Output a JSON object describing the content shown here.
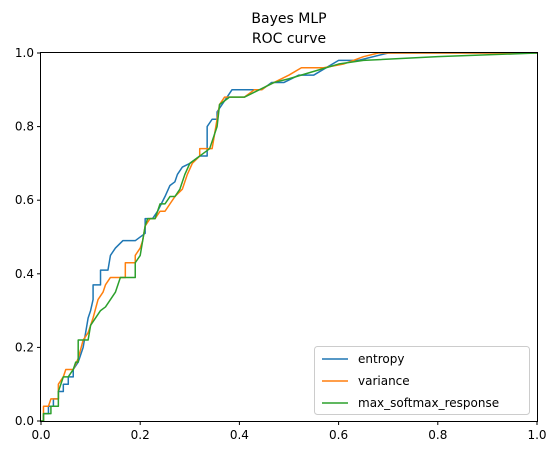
{
  "chart_data": {
    "type": "line",
    "title": [
      "Bayes MLP",
      "ROC curve"
    ],
    "xlabel": "",
    "ylabel": "",
    "xlim": [
      0,
      1
    ],
    "ylim": [
      0,
      1
    ],
    "x_ticks": [
      "0.0",
      "0.2",
      "0.4",
      "0.6",
      "0.8",
      "1.0"
    ],
    "y_ticks": [
      "0.0",
      "0.2",
      "0.4",
      "0.6",
      "0.8",
      "1.0"
    ],
    "grid": false,
    "legend": "bottom-right",
    "series": [
      {
        "name": "entropy",
        "color": "#1f77b4",
        "points": [
          [
            0,
            0
          ],
          [
            0.005,
            0
          ],
          [
            0.005,
            0.02
          ],
          [
            0.015,
            0.02
          ],
          [
            0.015,
            0.04
          ],
          [
            0.025,
            0.04
          ],
          [
            0.025,
            0.06
          ],
          [
            0.035,
            0.06
          ],
          [
            0.035,
            0.08
          ],
          [
            0.045,
            0.08
          ],
          [
            0.045,
            0.1
          ],
          [
            0.055,
            0.1
          ],
          [
            0.055,
            0.12
          ],
          [
            0.065,
            0.12
          ],
          [
            0.065,
            0.14
          ],
          [
            0.075,
            0.16
          ],
          [
            0.085,
            0.2
          ],
          [
            0.09,
            0.24
          ],
          [
            0.095,
            0.28
          ],
          [
            0.1,
            0.3
          ],
          [
            0.105,
            0.33
          ],
          [
            0.105,
            0.37
          ],
          [
            0.12,
            0.37
          ],
          [
            0.12,
            0.41
          ],
          [
            0.135,
            0.41
          ],
          [
            0.14,
            0.45
          ],
          [
            0.15,
            0.47
          ],
          [
            0.165,
            0.49
          ],
          [
            0.19,
            0.49
          ],
          [
            0.21,
            0.51
          ],
          [
            0.21,
            0.55
          ],
          [
            0.225,
            0.55
          ],
          [
            0.235,
            0.57
          ],
          [
            0.25,
            0.61
          ],
          [
            0.26,
            0.64
          ],
          [
            0.27,
            0.65
          ],
          [
            0.275,
            0.67
          ],
          [
            0.285,
            0.69
          ],
          [
            0.3,
            0.7
          ],
          [
            0.31,
            0.71
          ],
          [
            0.32,
            0.72
          ],
          [
            0.335,
            0.72
          ],
          [
            0.335,
            0.8
          ],
          [
            0.345,
            0.82
          ],
          [
            0.355,
            0.82
          ],
          [
            0.355,
            0.84
          ],
          [
            0.365,
            0.86
          ],
          [
            0.375,
            0.88
          ],
          [
            0.385,
            0.9
          ],
          [
            0.42,
            0.9
          ],
          [
            0.445,
            0.9
          ],
          [
            0.465,
            0.92
          ],
          [
            0.49,
            0.92
          ],
          [
            0.52,
            0.94
          ],
          [
            0.55,
            0.94
          ],
          [
            0.6,
            0.98
          ],
          [
            0.64,
            0.98
          ],
          [
            0.7,
            1.0
          ],
          [
            0.73,
            1.0
          ],
          [
            1.0,
            1.0
          ]
        ]
      },
      {
        "name": "variance",
        "color": "#ff7f0e",
        "points": [
          [
            0,
            0
          ],
          [
            0.005,
            0
          ],
          [
            0.005,
            0.04
          ],
          [
            0.015,
            0.04
          ],
          [
            0.02,
            0.06
          ],
          [
            0.035,
            0.06
          ],
          [
            0.035,
            0.1
          ],
          [
            0.045,
            0.12
          ],
          [
            0.05,
            0.14
          ],
          [
            0.065,
            0.14
          ],
          [
            0.075,
            0.17
          ],
          [
            0.085,
            0.22
          ],
          [
            0.095,
            0.24
          ],
          [
            0.105,
            0.28
          ],
          [
            0.115,
            0.33
          ],
          [
            0.125,
            0.35
          ],
          [
            0.13,
            0.37
          ],
          [
            0.14,
            0.39
          ],
          [
            0.17,
            0.39
          ],
          [
            0.17,
            0.43
          ],
          [
            0.19,
            0.43
          ],
          [
            0.19,
            0.45
          ],
          [
            0.2,
            0.47
          ],
          [
            0.205,
            0.49
          ],
          [
            0.21,
            0.53
          ],
          [
            0.22,
            0.55
          ],
          [
            0.23,
            0.55
          ],
          [
            0.24,
            0.57
          ],
          [
            0.25,
            0.57
          ],
          [
            0.26,
            0.59
          ],
          [
            0.27,
            0.61
          ],
          [
            0.285,
            0.63
          ],
          [
            0.295,
            0.67
          ],
          [
            0.305,
            0.7
          ],
          [
            0.32,
            0.72
          ],
          [
            0.32,
            0.74
          ],
          [
            0.345,
            0.74
          ],
          [
            0.35,
            0.78
          ],
          [
            0.36,
            0.86
          ],
          [
            0.37,
            0.88
          ],
          [
            0.41,
            0.88
          ],
          [
            0.43,
            0.9
          ],
          [
            0.445,
            0.9
          ],
          [
            0.455,
            0.91
          ],
          [
            0.47,
            0.92
          ],
          [
            0.5,
            0.94
          ],
          [
            0.525,
            0.96
          ],
          [
            0.57,
            0.96
          ],
          [
            0.61,
            0.97
          ],
          [
            0.65,
            0.99
          ],
          [
            0.68,
            1.0
          ],
          [
            1.0,
            1.0
          ]
        ]
      },
      {
        "name": "max_softmax_response",
        "color": "#2ca02c",
        "points": [
          [
            0,
            0
          ],
          [
            0.005,
            0
          ],
          [
            0.005,
            0.02
          ],
          [
            0.02,
            0.02
          ],
          [
            0.02,
            0.04
          ],
          [
            0.035,
            0.04
          ],
          [
            0.035,
            0.08
          ],
          [
            0.04,
            0.1
          ],
          [
            0.045,
            0.12
          ],
          [
            0.055,
            0.12
          ],
          [
            0.065,
            0.14
          ],
          [
            0.07,
            0.16
          ],
          [
            0.075,
            0.16
          ],
          [
            0.075,
            0.22
          ],
          [
            0.095,
            0.22
          ],
          [
            0.1,
            0.26
          ],
          [
            0.11,
            0.28
          ],
          [
            0.12,
            0.3
          ],
          [
            0.13,
            0.31
          ],
          [
            0.14,
            0.33
          ],
          [
            0.15,
            0.35
          ],
          [
            0.155,
            0.37
          ],
          [
            0.16,
            0.39
          ],
          [
            0.19,
            0.39
          ],
          [
            0.19,
            0.43
          ],
          [
            0.2,
            0.45
          ],
          [
            0.205,
            0.49
          ],
          [
            0.21,
            0.53
          ],
          [
            0.215,
            0.55
          ],
          [
            0.23,
            0.55
          ],
          [
            0.24,
            0.59
          ],
          [
            0.25,
            0.59
          ],
          [
            0.26,
            0.61
          ],
          [
            0.27,
            0.61
          ],
          [
            0.28,
            0.63
          ],
          [
            0.29,
            0.67
          ],
          [
            0.3,
            0.7
          ],
          [
            0.31,
            0.71
          ],
          [
            0.32,
            0.72
          ],
          [
            0.34,
            0.74
          ],
          [
            0.345,
            0.76
          ],
          [
            0.355,
            0.8
          ],
          [
            0.36,
            0.86
          ],
          [
            0.37,
            0.87
          ],
          [
            0.38,
            0.88
          ],
          [
            0.41,
            0.88
          ],
          [
            0.44,
            0.9
          ],
          [
            0.47,
            0.92
          ],
          [
            0.5,
            0.93
          ],
          [
            0.55,
            0.95
          ],
          [
            0.6,
            0.97
          ],
          [
            0.65,
            0.98
          ],
          [
            0.8,
            0.99
          ],
          [
            1.0,
            1.0
          ]
        ]
      }
    ]
  }
}
